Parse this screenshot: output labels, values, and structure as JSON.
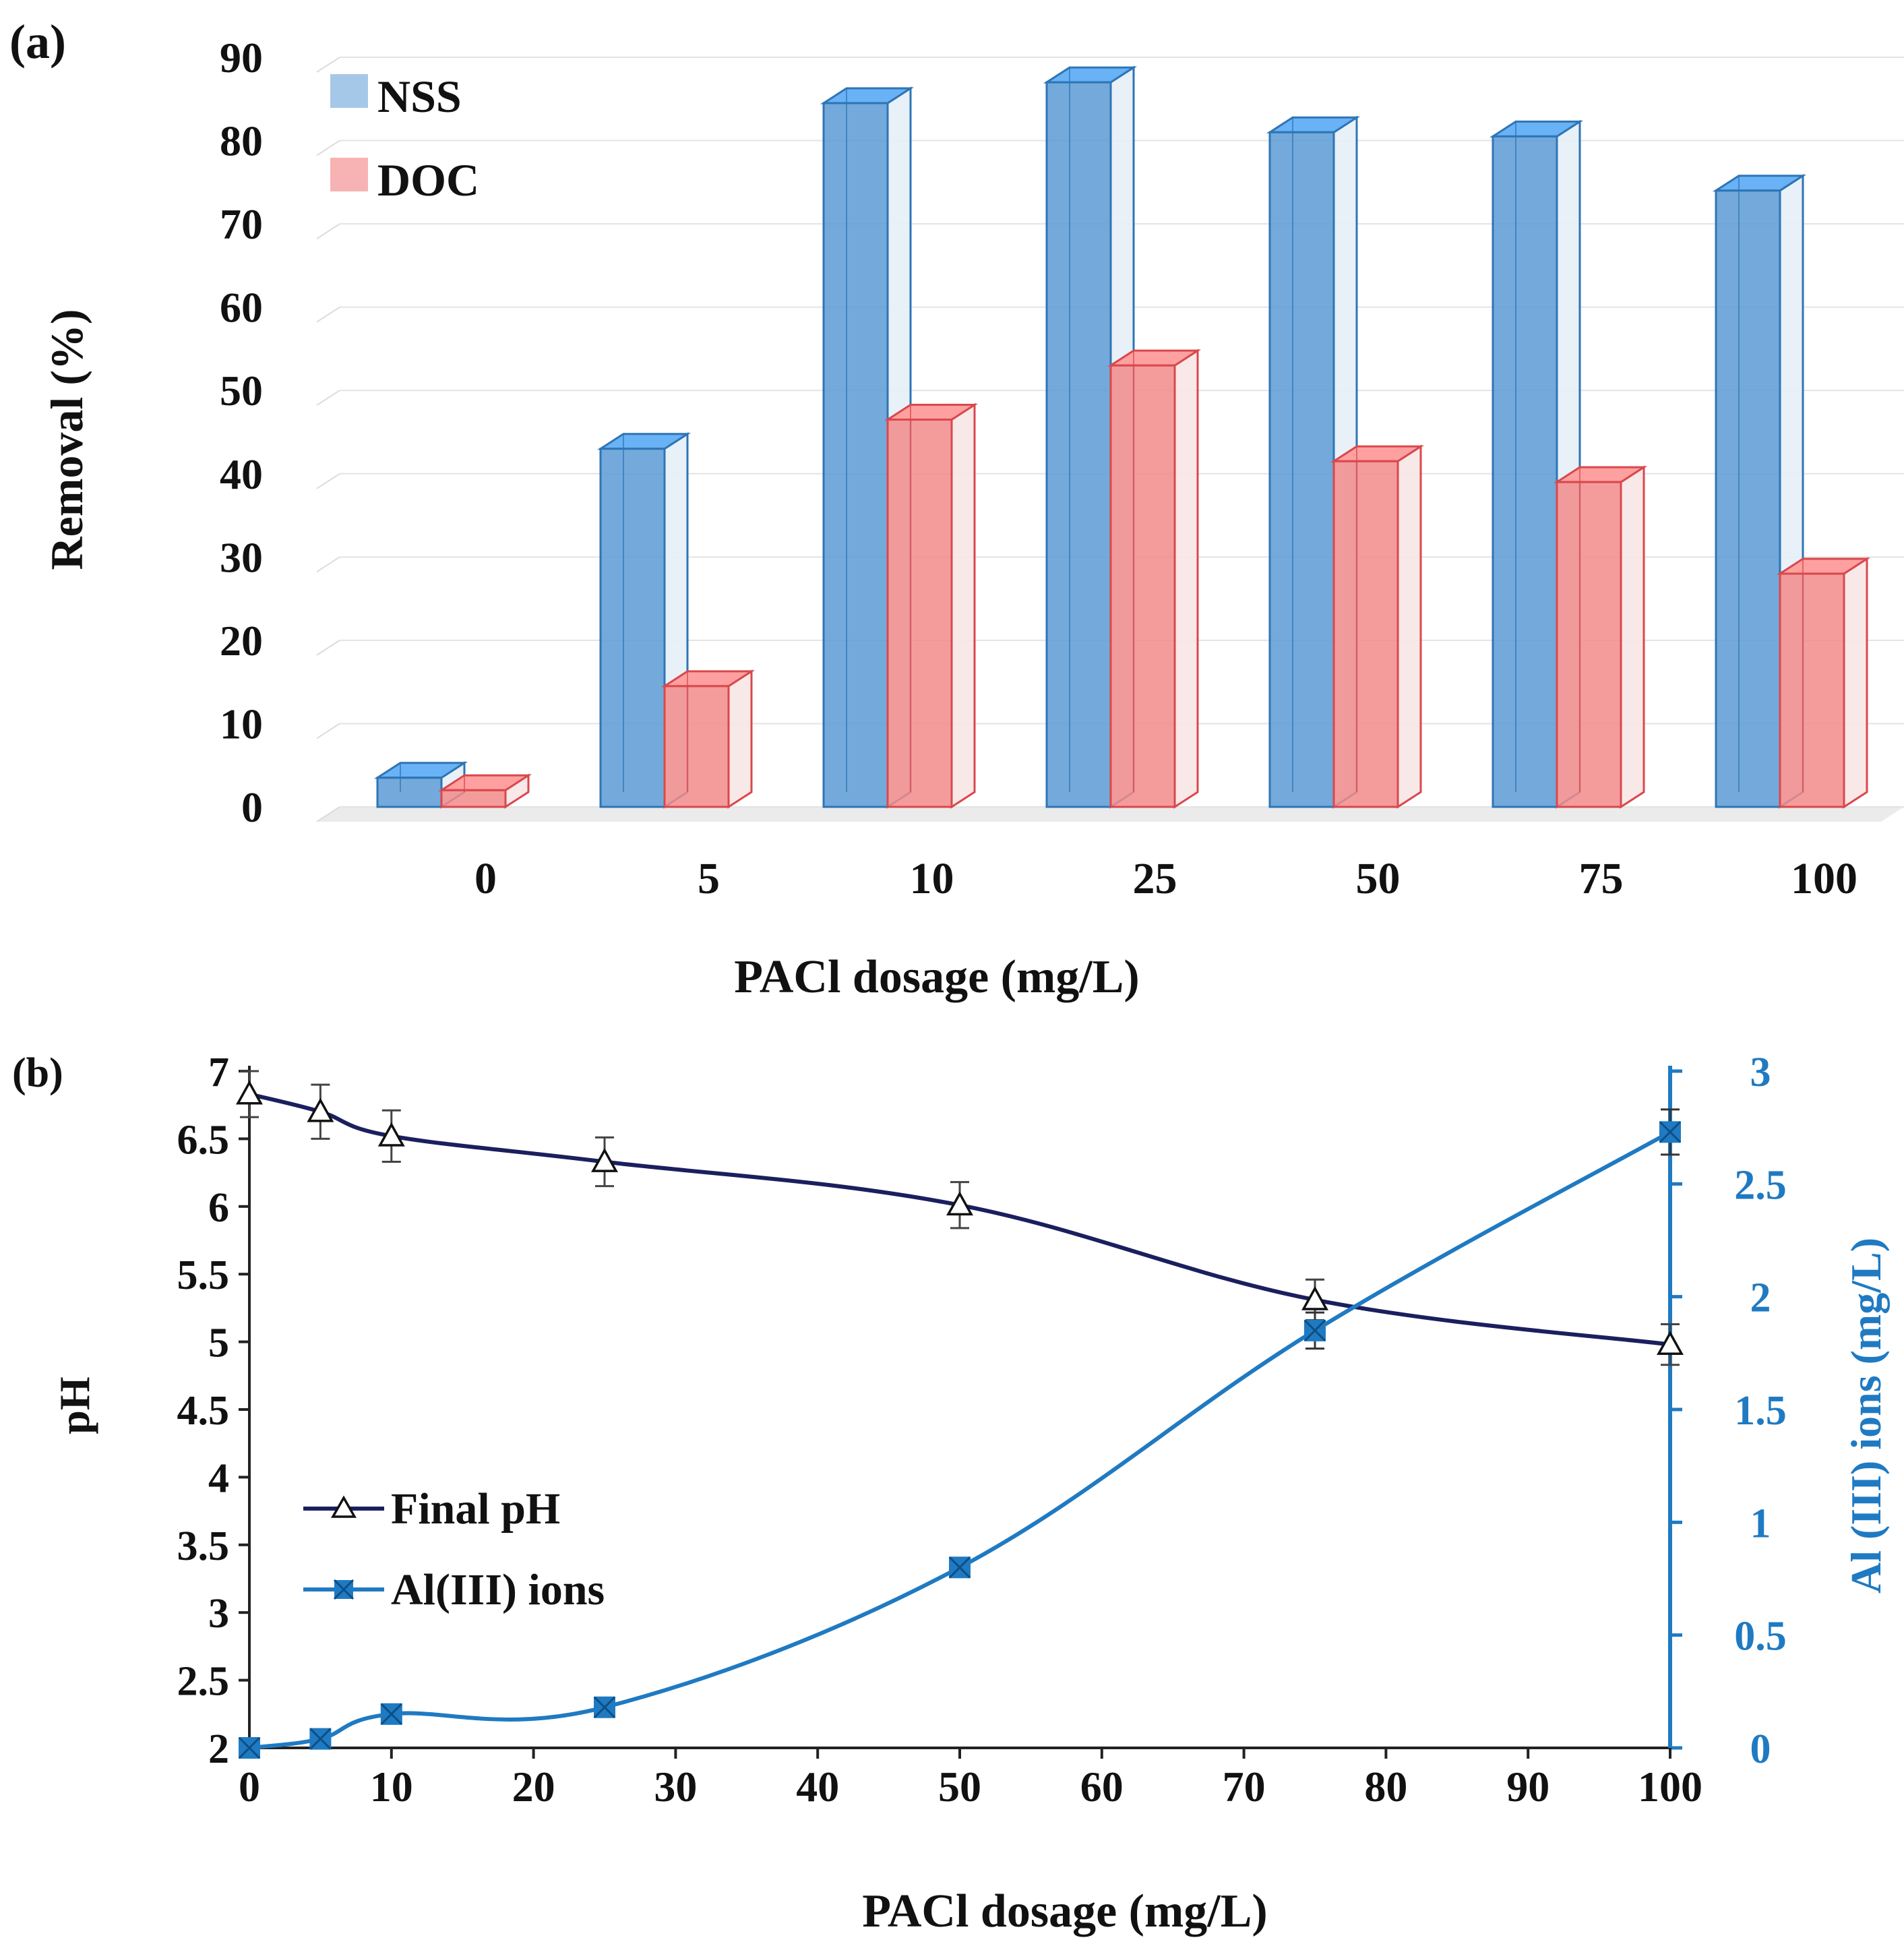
{
  "chart_data": [
    {
      "type": "bar",
      "panel_label": "(a)",
      "title": "",
      "xlabel": "PACl dosage (mg/L)",
      "ylabel": "Removal (%)",
      "ylim": [
        0,
        90
      ],
      "yticks": [
        "0",
        "10",
        "20",
        "30",
        "40",
        "50",
        "60",
        "70",
        "80",
        "90"
      ],
      "grid": true,
      "legend_position": "top-left",
      "categories": [
        "0",
        "5",
        "10",
        "25",
        "50",
        "75",
        "100"
      ],
      "series": [
        {
          "name": "NSS",
          "color": "#5b9bd5",
          "values": [
            3.5,
            43,
            84.5,
            87,
            81,
            80.5,
            74
          ]
        },
        {
          "name": "DOC",
          "color": "#f28b8b",
          "values": [
            2,
            14.5,
            46.5,
            53,
            41.5,
            39,
            28
          ]
        }
      ]
    },
    {
      "type": "line",
      "panel_label": "(b)",
      "title": "",
      "xlabel": "PACl dosage (mg/L)",
      "ylabel": "pH",
      "y2label": "Al (III) ions (mg/L)",
      "xlim": [
        0,
        100
      ],
      "xticks": [
        "0",
        "10",
        "20",
        "30",
        "40",
        "50",
        "60",
        "70",
        "80",
        "90",
        "100"
      ],
      "ylim": [
        2,
        7
      ],
      "yticks": [
        "2",
        "2.5",
        "3",
        "3.5",
        "4",
        "4.5",
        "5",
        "5.5",
        "6",
        "6.5",
        "7"
      ],
      "y2lim": [
        0,
        3
      ],
      "y2ticks": [
        "0",
        "0.5",
        "1",
        "1.5",
        "2",
        "2.5",
        "3"
      ],
      "grid": false,
      "legend_position": "center-left",
      "series": [
        {
          "name": "Final pH",
          "axis": "left",
          "color": "#1a1f5e",
          "marker": "triangle-open",
          "x": [
            0,
            5,
            10,
            25,
            50,
            75,
            100
          ],
          "y": [
            6.83,
            6.7,
            6.52,
            6.33,
            6.01,
            5.31,
            4.98
          ],
          "error": [
            0.17,
            0.2,
            0.19,
            0.18,
            0.17,
            0.15,
            0.15
          ]
        },
        {
          "name": "Al(III) ions",
          "axis": "right",
          "color": "#1f7ac2",
          "marker": "square-x",
          "x": [
            0,
            5,
            10,
            25,
            50,
            75,
            100
          ],
          "y": [
            0.0,
            0.04,
            0.15,
            0.18,
            0.8,
            1.85,
            2.73
          ],
          "error": [
            0.02,
            0.02,
            0.02,
            0.03,
            0.03,
            0.08,
            0.1
          ]
        }
      ]
    }
  ]
}
